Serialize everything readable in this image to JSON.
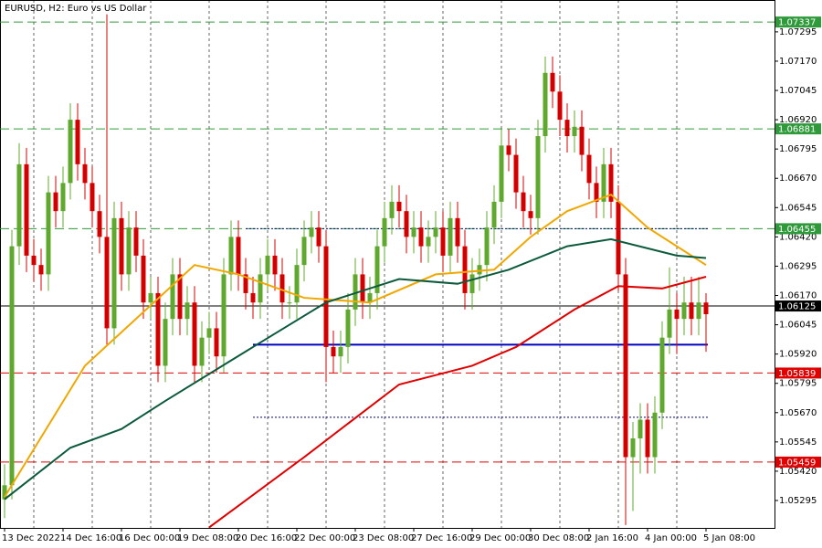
{
  "chart_data": {
    "type": "candlestick",
    "title": "EURUSD, H2:  Euro vs US Dollar",
    "categories": [
      "13 Dec 2022",
      null,
      null,
      null,
      null,
      null,
      null,
      null,
      "14 Dec 16:00",
      null,
      null,
      null,
      null,
      null,
      null,
      null,
      "16 Dec 00:00",
      null,
      null,
      null,
      null,
      null,
      null,
      null,
      "19 Dec 08:00",
      null,
      null,
      null,
      null,
      null,
      null,
      null,
      "20 Dec 16:00",
      null,
      null,
      null,
      null,
      null,
      null,
      null,
      "22 Dec 00:00",
      null,
      null,
      null,
      null,
      null,
      null,
      null,
      "23 Dec 08:00",
      null,
      null,
      null,
      null,
      null,
      null,
      null,
      "27 Dec 16:00",
      null,
      null,
      null,
      null,
      null,
      null,
      null,
      "29 Dec 00:00",
      null,
      null,
      null,
      null,
      null,
      null,
      null,
      "30 Dec 08:00",
      null,
      null,
      null,
      null,
      null,
      null,
      null,
      "2 Jan 16:00",
      null,
      null,
      null,
      null,
      null,
      null,
      null,
      "4 Jan 00:00",
      null,
      null,
      null,
      null,
      null,
      null,
      null,
      "5 Jan 08:00"
    ],
    "open": [
      1.053,
      1.0536,
      1.0638,
      1.0673,
      1.0634,
      1.063,
      1.0626,
      1.0661,
      1.0653,
      1.0665,
      1.0692,
      1.0673,
      1.0665,
      1.0653,
      1.0642,
      1.0603,
      1.065,
      1.0626,
      1.0646,
      1.0634,
      1.0614,
      1.0618,
      1.0587,
      1.0607,
      1.0626,
      1.0607,
      1.0614,
      1.0587,
      1.0599,
      1.0603,
      1.0591,
      1.0626,
      1.0642,
      1.0626,
      1.0618,
      1.0614,
      1.0626,
      1.0634,
      1.0626,
      1.0614,
      1.0614,
      1.063,
      1.0642,
      1.0646,
      1.0638,
      1.0595,
      1.0591,
      1.0595,
      1.0611,
      1.0626,
      1.0614,
      1.0618,
      1.0638,
      1.065,
      1.0657,
      1.0653,
      1.0642,
      1.0646,
      1.0638,
      1.0642,
      1.0646,
      1.0634,
      1.065,
      1.0638,
      1.0618,
      1.0626,
      1.063,
      1.0646,
      1.0657,
      1.0681,
      1.0677,
      1.0661,
      1.0653,
      1.065,
      1.0685,
      1.0712,
      1.0704,
      1.0692,
      1.0685,
      1.0689,
      1.0677,
      1.0665,
      1.0657,
      1.0673,
      1.0657,
      1.0626,
      1.0548,
      1.0556,
      1.0564,
      1.0548,
      1.0567,
      1.0599,
      1.0611,
      1.0607,
      1.0614,
      1.0607,
      1.0614
    ],
    "high": [
      1.0545,
      1.0645,
      1.0682,
      1.068,
      1.0641,
      1.0637,
      1.0668,
      1.0668,
      1.0672,
      1.0699,
      1.0699,
      1.068,
      1.0672,
      1.066,
      1.0737,
      1.0657,
      1.0657,
      1.0653,
      1.0653,
      1.0641,
      1.0625,
      1.0625,
      1.0614,
      1.0633,
      1.0633,
      1.0621,
      1.0621,
      1.0606,
      1.061,
      1.061,
      1.0633,
      1.0649,
      1.0649,
      1.0633,
      1.0625,
      1.0633,
      1.0641,
      1.0641,
      1.0633,
      1.0621,
      1.0637,
      1.0649,
      1.0653,
      1.0653,
      1.0645,
      1.0602,
      1.0602,
      1.0618,
      1.0633,
      1.0633,
      1.0625,
      1.0645,
      1.0657,
      1.0664,
      1.0664,
      1.066,
      1.0653,
      1.0653,
      1.0649,
      1.0653,
      1.0653,
      1.0657,
      1.0657,
      1.0645,
      1.0633,
      1.0637,
      1.0653,
      1.0664,
      1.0688,
      1.0688,
      1.0684,
      1.0668,
      1.066,
      1.0692,
      1.0719,
      1.0719,
      1.0711,
      1.0699,
      1.0696,
      1.0696,
      1.0684,
      1.0672,
      1.068,
      1.068,
      1.0664,
      1.0633,
      1.0563,
      1.0571,
      1.0571,
      1.0574,
      1.0606,
      1.0629,
      1.0618,
      1.0625,
      1.0625,
      1.0625,
      1.0618
    ],
    "low": [
      1.0522,
      1.053,
      1.063,
      1.0627,
      1.0623,
      1.0619,
      1.0619,
      1.0646,
      1.0646,
      1.0658,
      1.0666,
      1.0658,
      1.0646,
      1.0635,
      1.0596,
      1.0596,
      1.0619,
      1.0619,
      1.0627,
      1.0607,
      1.0607,
      1.058,
      1.058,
      1.06,
      1.06,
      1.06,
      1.058,
      1.058,
      1.0592,
      1.0584,
      1.0584,
      1.0619,
      1.0619,
      1.0611,
      1.0607,
      1.0607,
      1.0619,
      1.0619,
      1.0607,
      1.0607,
      1.0607,
      1.0623,
      1.0635,
      1.0631,
      1.058,
      1.0584,
      1.0584,
      1.0588,
      1.0604,
      1.0607,
      1.0607,
      1.0611,
      1.0631,
      1.0643,
      1.0646,
      1.0635,
      1.0635,
      1.0631,
      1.0631,
      1.0635,
      1.0627,
      1.0627,
      1.0631,
      1.0611,
      1.0611,
      1.0619,
      1.0623,
      1.0639,
      1.065,
      1.067,
      1.0654,
      1.0646,
      1.0643,
      1.0643,
      1.0678,
      1.0697,
      1.0685,
      1.0678,
      1.0678,
      1.067,
      1.0658,
      1.065,
      1.065,
      1.065,
      1.0619,
      1.0519,
      1.0525,
      1.0541,
      1.0541,
      1.0541,
      1.056,
      1.0592,
      1.0592,
      1.06,
      1.06,
      1.06,
      1.0593
    ],
    "close": [
      1.0536,
      1.0638,
      1.0673,
      1.0634,
      1.063,
      1.0626,
      1.0661,
      1.0653,
      1.0665,
      1.0692,
      1.0673,
      1.0665,
      1.0653,
      1.0642,
      1.0603,
      1.065,
      1.0626,
      1.0646,
      1.0634,
      1.0614,
      1.0618,
      1.0587,
      1.0607,
      1.0626,
      1.0607,
      1.0614,
      1.0587,
      1.0599,
      1.0603,
      1.0591,
      1.0626,
      1.0642,
      1.0626,
      1.0618,
      1.0614,
      1.0626,
      1.0634,
      1.0626,
      1.0614,
      1.0614,
      1.063,
      1.0642,
      1.0646,
      1.0638,
      1.0595,
      1.0591,
      1.0595,
      1.0611,
      1.0626,
      1.0614,
      1.0618,
      1.0638,
      1.065,
      1.0657,
      1.0653,
      1.0642,
      1.0646,
      1.0638,
      1.0642,
      1.0646,
      1.0634,
      1.065,
      1.0638,
      1.0618,
      1.0626,
      1.063,
      1.0646,
      1.0657,
      1.0681,
      1.0677,
      1.0661,
      1.0653,
      1.065,
      1.0685,
      1.0712,
      1.0704,
      1.0692,
      1.0685,
      1.0689,
      1.0677,
      1.0665,
      1.0657,
      1.0673,
      1.0657,
      1.0626,
      1.0548,
      1.0556,
      1.0564,
      1.0548,
      1.0567,
      1.0599,
      1.0611,
      1.0607,
      1.0614,
      1.0607,
      1.0614,
      1.0609
    ],
    "up_color": "#5fa82e",
    "down_color": "#d40000",
    "ylim": [
      1.05178,
      1.07431
    ],
    "yticks": [
      1.07295,
      {
        "value": 1.0717,
        "label": "1.07170"
      },
      1.07045,
      {
        "value": 1.0692,
        "label": "1.06920"
      },
      1.06795,
      {
        "value": 1.0667,
        "label": "1.06670"
      },
      1.06545,
      {
        "value": 1.0642,
        "label": "1.06420"
      },
      1.06295,
      {
        "value": 1.0617,
        "label": "1.06170"
      },
      1.06045,
      {
        "value": 1.0592,
        "label": "1.05920"
      },
      1.05795,
      {
        "value": 1.0567,
        "label": "1.05670"
      },
      1.05545,
      {
        "value": 1.0542,
        "label": "1.05420"
      },
      1.05295
    ],
    "moving_averages": [
      {
        "color": "#f0a800",
        "x": [
          0,
          11,
          26,
          32,
          41,
          50,
          59,
          67,
          72,
          77,
          83,
          88,
          93,
          96
        ],
        "values": [
          1.0531,
          1.0587,
          1.063,
          1.0626,
          1.0616,
          1.0614,
          1.0626,
          1.0628,
          1.0642,
          1.0653,
          1.066,
          1.0646,
          1.0636,
          1.063
        ]
      },
      {
        "color": "#0b5a3c",
        "x": [
          0,
          9,
          16,
          22,
          34,
          44,
          54,
          62,
          69,
          77,
          83,
          92,
          96
        ],
        "values": [
          1.053,
          1.0552,
          1.056,
          1.0572,
          1.0595,
          1.0614,
          1.0624,
          1.0622,
          1.0628,
          1.0638,
          1.0641,
          1.0634,
          1.0633
        ]
      },
      {
        "color": "#e00000",
        "x": [
          28,
          41,
          54,
          64,
          70,
          78,
          84,
          90,
          96
        ],
        "values": [
          1.0518,
          1.0548,
          1.0579,
          1.0587,
          1.0595,
          1.0611,
          1.0621,
          1.062,
          1.0625
        ]
      }
    ],
    "levels": [
      {
        "value": 1.07337,
        "color": "#2e9a3a",
        "style": "dashed"
      },
      {
        "value": 1.06881,
        "color": "#2e9a3a",
        "style": "dashed"
      },
      {
        "value": 1.06455,
        "color": "#2e9a3a",
        "style": "dashed"
      },
      {
        "value": 1.06125,
        "color": "#000000",
        "style": "solid"
      },
      {
        "value": 1.05839,
        "color": "#e00000",
        "style": "dashed"
      },
      {
        "value": 1.05459,
        "color": "#e00000",
        "style": "dashed"
      }
    ],
    "lines": [
      {
        "value": 1.0596,
        "start": 34,
        "color": "#0000c0",
        "style": "solid"
      },
      {
        "value": 1.06455,
        "start": 33,
        "color": "#000080",
        "style": "dotted"
      },
      {
        "value": 1.0565,
        "start": 34,
        "color": "#000080",
        "style": "dotted"
      }
    ]
  }
}
